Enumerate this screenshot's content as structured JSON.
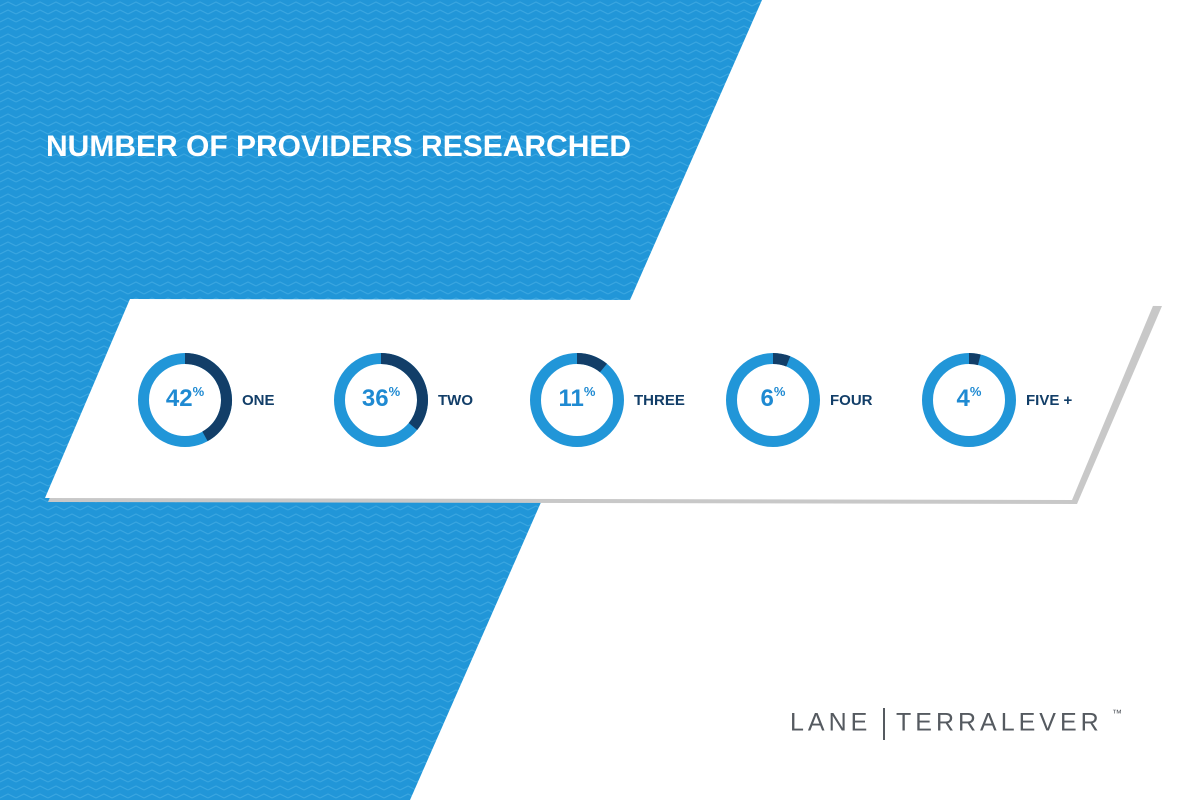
{
  "chart_data": {
    "type": "donut",
    "title": "NUMBER OF PROVIDERS RESEARCHED",
    "categories": [
      "ONE",
      "TWO",
      "THREE",
      "FOUR",
      "FIVE +"
    ],
    "values": [
      42,
      36,
      11,
      6,
      4
    ],
    "value_labels": [
      "42%",
      "36%",
      "11%",
      "6%",
      "4%"
    ],
    "color": "#123e68",
    "track_color": "#2196d8"
  },
  "logo": {
    "left": "LANE",
    "right": "TERRALEVER",
    "mark": "™"
  }
}
